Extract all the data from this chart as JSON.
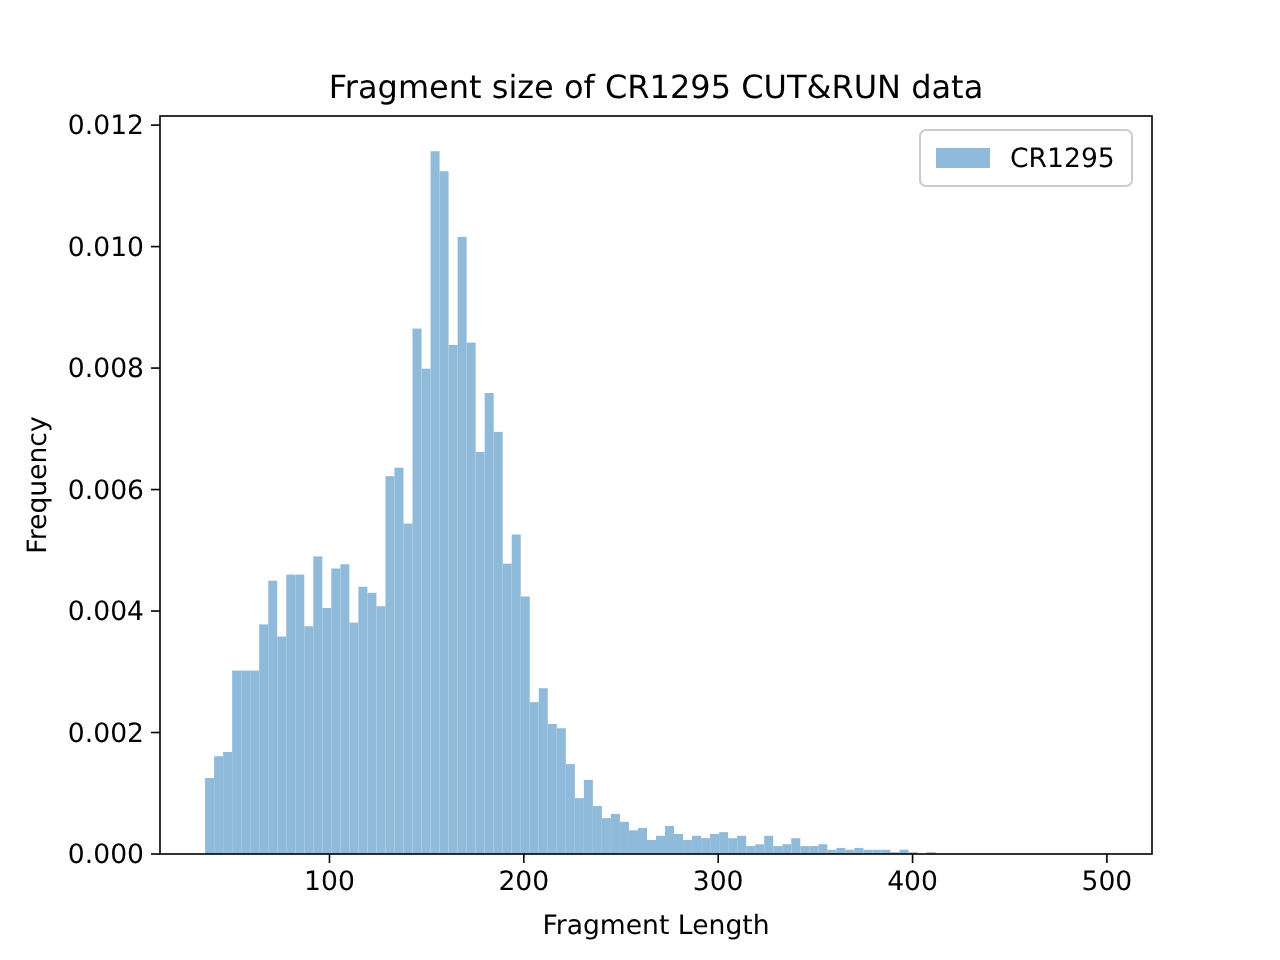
{
  "chart_data": {
    "type": "histogram",
    "title": "Fragment size of CR1295 CUT&RUN data",
    "xlabel": "Fragment Length",
    "ylabel": "Frequency",
    "bins": [
      36,
      40.64,
      45.28,
      49.92,
      54.56,
      59.2,
      63.84,
      68.48,
      73.12,
      77.76,
      82.4,
      87.04,
      91.68,
      96.32,
      100.96,
      105.6,
      110.24,
      114.88,
      119.52,
      124.16,
      128.8,
      133.44,
      138.08,
      142.72,
      147.36,
      152,
      156.64,
      161.28,
      165.92,
      170.56,
      175.2,
      179.84,
      184.48,
      189.12,
      193.76,
      198.4,
      203.04,
      207.68,
      212.32,
      216.96,
      221.6,
      226.24,
      230.88,
      235.52,
      240.16,
      244.8,
      249.44,
      254.08,
      258.72,
      263.36,
      268,
      272.64,
      277.28,
      281.92,
      286.56,
      291.2,
      295.84,
      300.48,
      305.12,
      309.76,
      314.4,
      319.04,
      323.68,
      328.32,
      332.96,
      337.6,
      342.24,
      346.88,
      351.52,
      356.16,
      360.8,
      365.44,
      370.08,
      374.72,
      379.36,
      384,
      388.64,
      393.28,
      397.92,
      402.56,
      407.2,
      411.84,
      416.48,
      421.12,
      425.76,
      430.4,
      435.04,
      439.68,
      444.32,
      448.96,
      453.6,
      458.24,
      462.88,
      467.52,
      472.16,
      476.8,
      481.44,
      486.08,
      490.72,
      495.36,
      500
    ],
    "series": [
      {
        "name": "CR1295",
        "color": "#8fbad9",
        "values": [
          0.00125,
          0.00161,
          0.00168,
          0.00302,
          0.00302,
          0.00302,
          0.00378,
          0.0045,
          0.00358,
          0.0046,
          0.0046,
          0.00375,
          0.0049,
          0.00405,
          0.0047,
          0.00477,
          0.00381,
          0.0044,
          0.0043,
          0.00408,
          0.00622,
          0.00636,
          0.00544,
          0.00865,
          0.00799,
          0.01157,
          0.01124,
          0.00838,
          0.01016,
          0.00842,
          0.00662,
          0.00759,
          0.00695,
          0.00478,
          0.00526,
          0.00424,
          0.0025,
          0.00273,
          0.00214,
          0.00207,
          0.00148,
          0.00092,
          0.00122,
          0.00079,
          0.00059,
          0.00066,
          0.00053,
          0.00039,
          0.00043,
          0.00023,
          0.0003,
          0.00046,
          0.00033,
          0.00023,
          0.0003,
          0.00026,
          0.00033,
          0.00036,
          0.00026,
          0.0003,
          0.00013,
          0.00016,
          0.0003,
          0.00013,
          0.00016,
          0.00026,
          0.00013,
          0.00013,
          0.00016,
          7e-05,
          0.0001,
          7e-05,
          0.0001,
          7e-05,
          7e-05,
          7e-05,
          3e-05,
          7e-05,
          3e-05,
          0,
          3e-05,
          0,
          0,
          0,
          0,
          0,
          0,
          0,
          0,
          0,
          0,
          0,
          0,
          0,
          0,
          0,
          0,
          0,
          0,
          0
        ]
      }
    ],
    "xlim": [
      12.8,
      523.2
    ],
    "ylim": [
      0,
      0.01215
    ],
    "xticks": [
      100,
      200,
      300,
      400,
      500
    ],
    "yticks": [
      {
        "value": 0,
        "label": "0.000"
      },
      {
        "value": 0.002,
        "label": "0.002"
      },
      {
        "value": 0.004,
        "label": "0.004"
      },
      {
        "value": 0.006,
        "label": "0.006"
      },
      {
        "value": 0.008,
        "label": "0.008"
      },
      {
        "value": 0.01,
        "label": "0.010"
      },
      {
        "value": 0.012,
        "label": "0.012"
      }
    ],
    "legend": "top right"
  }
}
